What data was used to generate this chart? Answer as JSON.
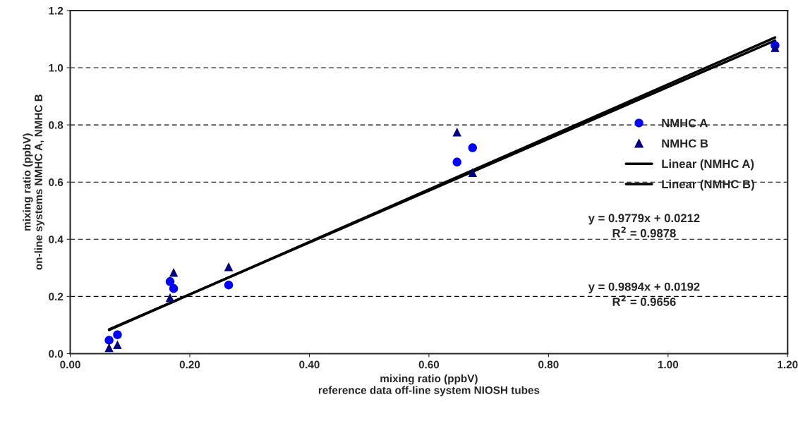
{
  "chart_data": {
    "type": "scatter",
    "xlabel": "mixing ratio (ppbV)\nreference data off-line system NIOSH tubes",
    "ylabel": "mixing ratio (ppbV)\non-line systems NMHC A, NMHC B",
    "series": [
      {
        "name": "NMHC A",
        "marker": "circle",
        "color": "#0000ff",
        "x": [
          0.065,
          0.079,
          0.167,
          0.173,
          0.265,
          0.647,
          0.673,
          1.179
        ],
        "values": [
          0.047,
          0.066,
          0.252,
          0.228,
          0.24,
          0.67,
          0.72,
          1.078
        ]
      },
      {
        "name": "NMHC B",
        "marker": "triangle",
        "color": "#000080",
        "x": [
          0.065,
          0.079,
          0.167,
          0.173,
          0.265,
          0.647,
          0.673,
          1.179
        ],
        "values": [
          0.021,
          0.031,
          0.196,
          0.284,
          0.304,
          0.775,
          0.633,
          1.07
        ]
      },
      {
        "name": "Linear (NMHC A)",
        "type": "line",
        "color": "#000000",
        "x": [
          0.065,
          1.179
        ],
        "values": [
          0.085,
          1.095
        ]
      },
      {
        "name": "Linear (NMHC B)",
        "type": "line",
        "color": "#000000",
        "x": [
          0.065,
          1.179
        ],
        "values": [
          0.083,
          1.106
        ]
      }
    ],
    "annotations": [
      "y = 0.9779x + 0.0212\nR$^{2}$ = 0.9878",
      "y = 0.9894x + 0.0192\nR$^{2}$ = 0.9656"
    ],
    "xlim": [
      0,
      1.2
    ],
    "ylim": [
      0,
      1.2
    ],
    "xticks": [
      {
        "value": 0,
        "label": "0.00"
      },
      {
        "value": 0.2,
        "label": "0.20"
      },
      {
        "value": 0.4,
        "label": "0.40"
      },
      {
        "value": 0.6,
        "label": "0.60"
      },
      {
        "value": 0.8,
        "label": "0.80"
      },
      {
        "value": 1.0,
        "label": "1.00"
      },
      {
        "value": 1.2,
        "label": "1.20"
      }
    ],
    "yticks": [
      {
        "value": 0,
        "label": "0.0"
      },
      {
        "value": 0.2,
        "label": "0.2"
      },
      {
        "value": 0.4,
        "label": "0.4"
      },
      {
        "value": 0.6,
        "label": "0.6"
      },
      {
        "value": 0.8,
        "label": "0.8"
      },
      {
        "value": 1.0,
        "label": "1.0"
      },
      {
        "value": 1.2,
        "label": "1.2"
      }
    ],
    "grid": "y",
    "legend": "right",
    "line_style": "solid"
  }
}
